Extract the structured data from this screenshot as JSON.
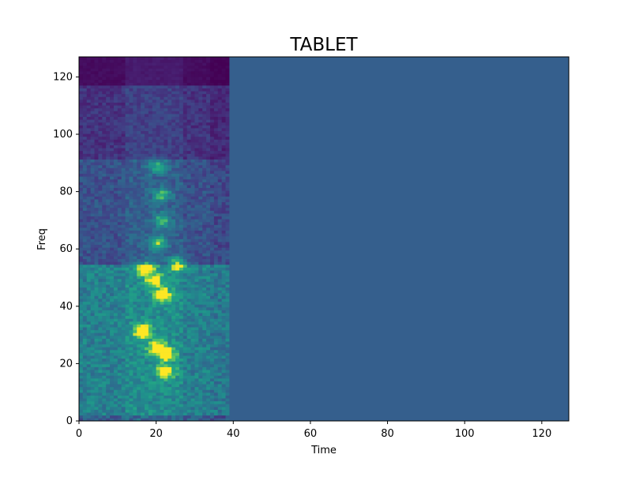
{
  "chart_data": {
    "type": "heatmap",
    "title": "TABLET",
    "xlabel": "Time",
    "ylabel": "Freq",
    "xlim": [
      0,
      127
    ],
    "ylim": [
      0,
      127
    ],
    "x_ticks": [
      "0",
      "20",
      "40",
      "60",
      "80",
      "100",
      "120"
    ],
    "y_ticks": [
      "0",
      "20",
      "40",
      "60",
      "80",
      "100",
      "120"
    ],
    "colormap": "viridis",
    "grid": false,
    "legend": "none",
    "regions": [
      {
        "name": "spectrogram",
        "time_range": [
          0,
          39
        ],
        "freq_range": [
          0,
          127
        ],
        "description_value": "variable",
        "hotspots": [
          {
            "time": 20,
            "freq": 25,
            "intensity": 1.0
          },
          {
            "time": 22,
            "freq": 23,
            "intensity": 0.95
          },
          {
            "time": 16,
            "freq": 31,
            "intensity": 0.85
          },
          {
            "time": 17,
            "freq": 53,
            "intensity": 0.85
          },
          {
            "time": 21,
            "freq": 44,
            "intensity": 0.8
          },
          {
            "time": 19,
            "freq": 49,
            "intensity": 0.75
          },
          {
            "time": 25,
            "freq": 55,
            "intensity": 0.7
          },
          {
            "time": 22,
            "freq": 17,
            "intensity": 0.75
          },
          {
            "time": 20,
            "freq": 62,
            "intensity": 0.65
          },
          {
            "time": 21,
            "freq": 70,
            "intensity": 0.6
          },
          {
            "time": 21,
            "freq": 79,
            "intensity": 0.6
          },
          {
            "time": 20,
            "freq": 89,
            "intensity": 0.55
          }
        ]
      },
      {
        "name": "padding",
        "time_range": [
          39,
          127
        ],
        "freq_range": [
          0,
          127
        ],
        "value": 0.33,
        "color": "#355F8D"
      }
    ]
  }
}
